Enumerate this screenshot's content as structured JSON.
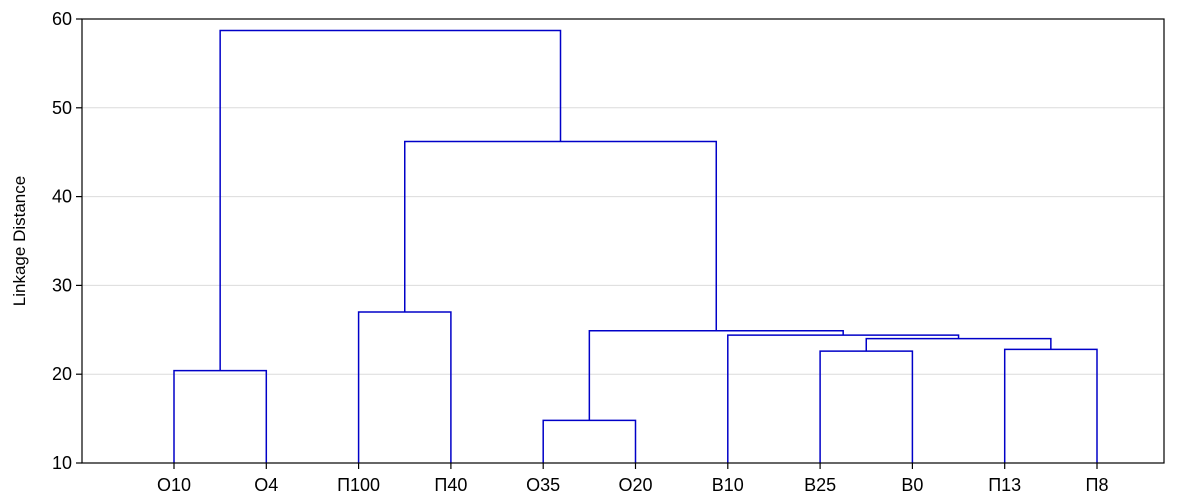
{
  "chart_data": {
    "type": "dendrogram",
    "ylabel": "Linkage Distance",
    "ylim": [
      10,
      60
    ],
    "yticks": [
      10,
      20,
      30,
      40,
      50,
      60
    ],
    "grid": true,
    "line_color": "#0000c8",
    "leaves": [
      "O10",
      "O4",
      "П100",
      "П40",
      "O35",
      "O20",
      "B10",
      "B25",
      "B0",
      "П13",
      "П8"
    ],
    "merges": [
      {
        "left": "leaf:0",
        "right": "leaf:1",
        "height": 20.4
      },
      {
        "left": "leaf:2",
        "right": "leaf:3",
        "height": 27.0
      },
      {
        "left": "leaf:4",
        "right": "leaf:5",
        "height": 14.8
      },
      {
        "left": "leaf:7",
        "right": "leaf:8",
        "height": 22.6
      },
      {
        "left": "leaf:9",
        "right": "leaf:10",
        "height": 22.8
      },
      {
        "left": "node:3",
        "right": "node:4",
        "height": 24.0
      },
      {
        "left": "leaf:6",
        "right": "node:5",
        "height": 24.4
      },
      {
        "left": "node:2",
        "right": "node:6",
        "height": 24.9
      },
      {
        "left": "node:1",
        "right": "node:7",
        "height": 46.2
      },
      {
        "left": "node:0",
        "right": "node:8",
        "height": 58.7
      }
    ]
  }
}
